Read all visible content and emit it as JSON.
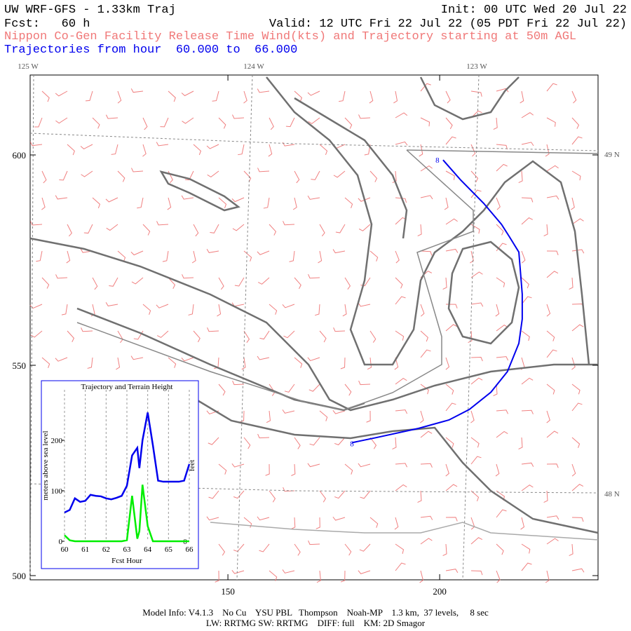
{
  "header": {
    "title": "UW WRF-GFS - 1.33km Traj",
    "init": "Init: 00 UTC Wed 20 Jul 22",
    "forecast": "Fcst:   60 h",
    "valid": "Valid: 12 UTC Fri 22 Jul 22 (05 PDT Fri 22 Jul 22)",
    "subtitle": "Nippon Co-Gen Facility Release Time Wind(kts) and Trajectory starting at 50m AGL",
    "trajectory_range": "Trajectories from hour  60.000 to  66.000"
  },
  "map": {
    "xlim": [
      103.3,
      237.4
    ],
    "ylim": [
      499,
      619
    ],
    "xticks": [
      150,
      200
    ],
    "yticks": [
      500,
      550,
      600
    ],
    "lon_labels": [
      "125 W",
      "124 W",
      "123 W"
    ],
    "lat_labels": [
      "49 N",
      "48 N"
    ],
    "trajectory": {
      "color": "#0000ee",
      "x": [
        179.3,
        185,
        195,
        202.2,
        207,
        212.1,
        216,
        218.7,
        219.5,
        219.5,
        218.7,
        216.5,
        214.6,
        210.4,
        205,
        200.8
      ],
      "y": [
        531.6,
        532.8,
        535,
        537,
        539.5,
        543.6,
        548.5,
        555.2,
        561,
        566.9,
        576.9,
        580.5,
        583.5,
        588.5,
        594,
        598.8
      ],
      "start_label": "8",
      "end_label": "8"
    }
  },
  "chart_data": {
    "type": "line",
    "title": "Trajectory and Terrain Height",
    "xlabel": "Fcst Hour",
    "ylabel": "meters above sea level",
    "y2label": "feet",
    "xlim": [
      60,
      66
    ],
    "xticks": [
      60,
      61,
      62,
      63,
      64,
      65,
      66
    ],
    "ylim": [
      0,
      300
    ],
    "yticks": [
      0,
      100,
      200
    ],
    "y2lim": [
      0,
      984
    ],
    "y2ticks": [
      0
    ],
    "grid": true,
    "x": [
      60,
      60.25,
      60.5,
      60.75,
      61,
      61.25,
      61.5,
      61.75,
      62,
      62.25,
      62.5,
      62.75,
      63,
      63.25,
      63.5,
      63.6,
      63.75,
      64,
      64.25,
      64.5,
      64.75,
      65,
      65.25,
      65.5,
      65.75,
      66
    ],
    "series": [
      {
        "name": "trajectory height",
        "color": "#0000ee",
        "values": [
          57,
          62,
          85,
          78,
          80,
          92,
          90,
          89,
          85,
          83,
          86,
          90,
          110,
          170,
          185,
          145,
          200,
          255,
          190,
          120,
          118,
          118,
          118,
          118,
          120,
          153
        ]
      },
      {
        "name": "terrain height",
        "color": "#00ee00",
        "values": [
          12,
          2,
          0,
          0,
          0,
          0,
          0,
          0,
          0,
          0,
          0,
          0,
          2,
          90,
          5,
          20,
          112,
          30,
          0,
          0,
          0,
          0,
          0,
          0,
          0,
          0
        ]
      }
    ]
  },
  "footer": {
    "line1": "Model Info: V4.1.3    No Cu    YSU PBL   Thompson    Noah-MP    1.3 km,  37 levels,     8 sec",
    "line2": "LW: RRTMG SW: RRTMG    DIFF: full    KM: 2D Smagor"
  }
}
